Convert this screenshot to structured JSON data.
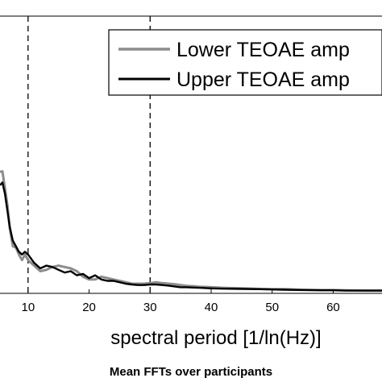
{
  "chart_data": {
    "type": "line",
    "xlabel": "spectral period [1/ln(Hz)]",
    "caption": "Mean FFTs over participants",
    "xlim": [
      5.4,
      68
    ],
    "ylim": [
      0,
      1
    ],
    "x_ticks": [
      10,
      20,
      30,
      40,
      50,
      60
    ],
    "vlines": [
      10,
      30
    ],
    "legend": {
      "position": "top-right"
    },
    "series": [
      {
        "name": "Lower TEOAE amp",
        "color": "#8c8c8c",
        "x": [
          5.4,
          5.8,
          6.2,
          6.6,
          7,
          7.5,
          8,
          8.5,
          9,
          9.5,
          10,
          11,
          12,
          13,
          14,
          15,
          16,
          17,
          18,
          19,
          20,
          21,
          22,
          23,
          24,
          25,
          26,
          27,
          28,
          29,
          30,
          31,
          32,
          33,
          34,
          35,
          36,
          37,
          38,
          40,
          42,
          45,
          48,
          50,
          52,
          55,
          58,
          60,
          62,
          65,
          68
        ],
        "y": [
          0.438,
          0.44,
          0.38,
          0.32,
          0.235,
          0.17,
          0.165,
          0.14,
          0.12,
          0.14,
          0.12,
          0.1,
          0.08,
          0.085,
          0.095,
          0.1,
          0.095,
          0.09,
          0.08,
          0.06,
          0.05,
          0.05,
          0.06,
          0.055,
          0.05,
          0.045,
          0.04,
          0.035,
          0.035,
          0.035,
          0.037,
          0.04,
          0.037,
          0.035,
          0.033,
          0.03,
          0.027,
          0.026,
          0.024,
          0.022,
          0.02,
          0.018,
          0.016,
          0.015,
          0.015,
          0.013,
          0.012,
          0.012,
          0.011,
          0.01,
          0.01
        ]
      },
      {
        "name": "Upper TEOAE amp",
        "color": "#000000",
        "x": [
          5.4,
          5.8,
          6.2,
          6.6,
          7,
          7.5,
          8,
          8.5,
          9,
          9.5,
          10,
          11,
          12,
          13,
          14,
          15,
          16,
          17,
          18,
          19,
          20,
          21,
          22,
          23,
          24,
          25,
          26,
          27,
          28,
          29,
          30,
          31,
          32,
          33,
          34,
          35,
          36,
          37,
          38,
          40,
          42,
          45,
          48,
          50,
          52,
          55,
          58,
          60,
          62,
          65,
          68
        ],
        "y": [
          0.39,
          0.4,
          0.36,
          0.3,
          0.24,
          0.19,
          0.17,
          0.15,
          0.14,
          0.15,
          0.14,
          0.11,
          0.09,
          0.1,
          0.095,
          0.085,
          0.075,
          0.08,
          0.065,
          0.07,
          0.055,
          0.065,
          0.05,
          0.045,
          0.045,
          0.04,
          0.035,
          0.032,
          0.03,
          0.03,
          0.032,
          0.032,
          0.03,
          0.028,
          0.025,
          0.022,
          0.022,
          0.021,
          0.02,
          0.018,
          0.017,
          0.016,
          0.015,
          0.014,
          0.013,
          0.012,
          0.011,
          0.011,
          0.01,
          0.01,
          0.01
        ]
      }
    ]
  }
}
